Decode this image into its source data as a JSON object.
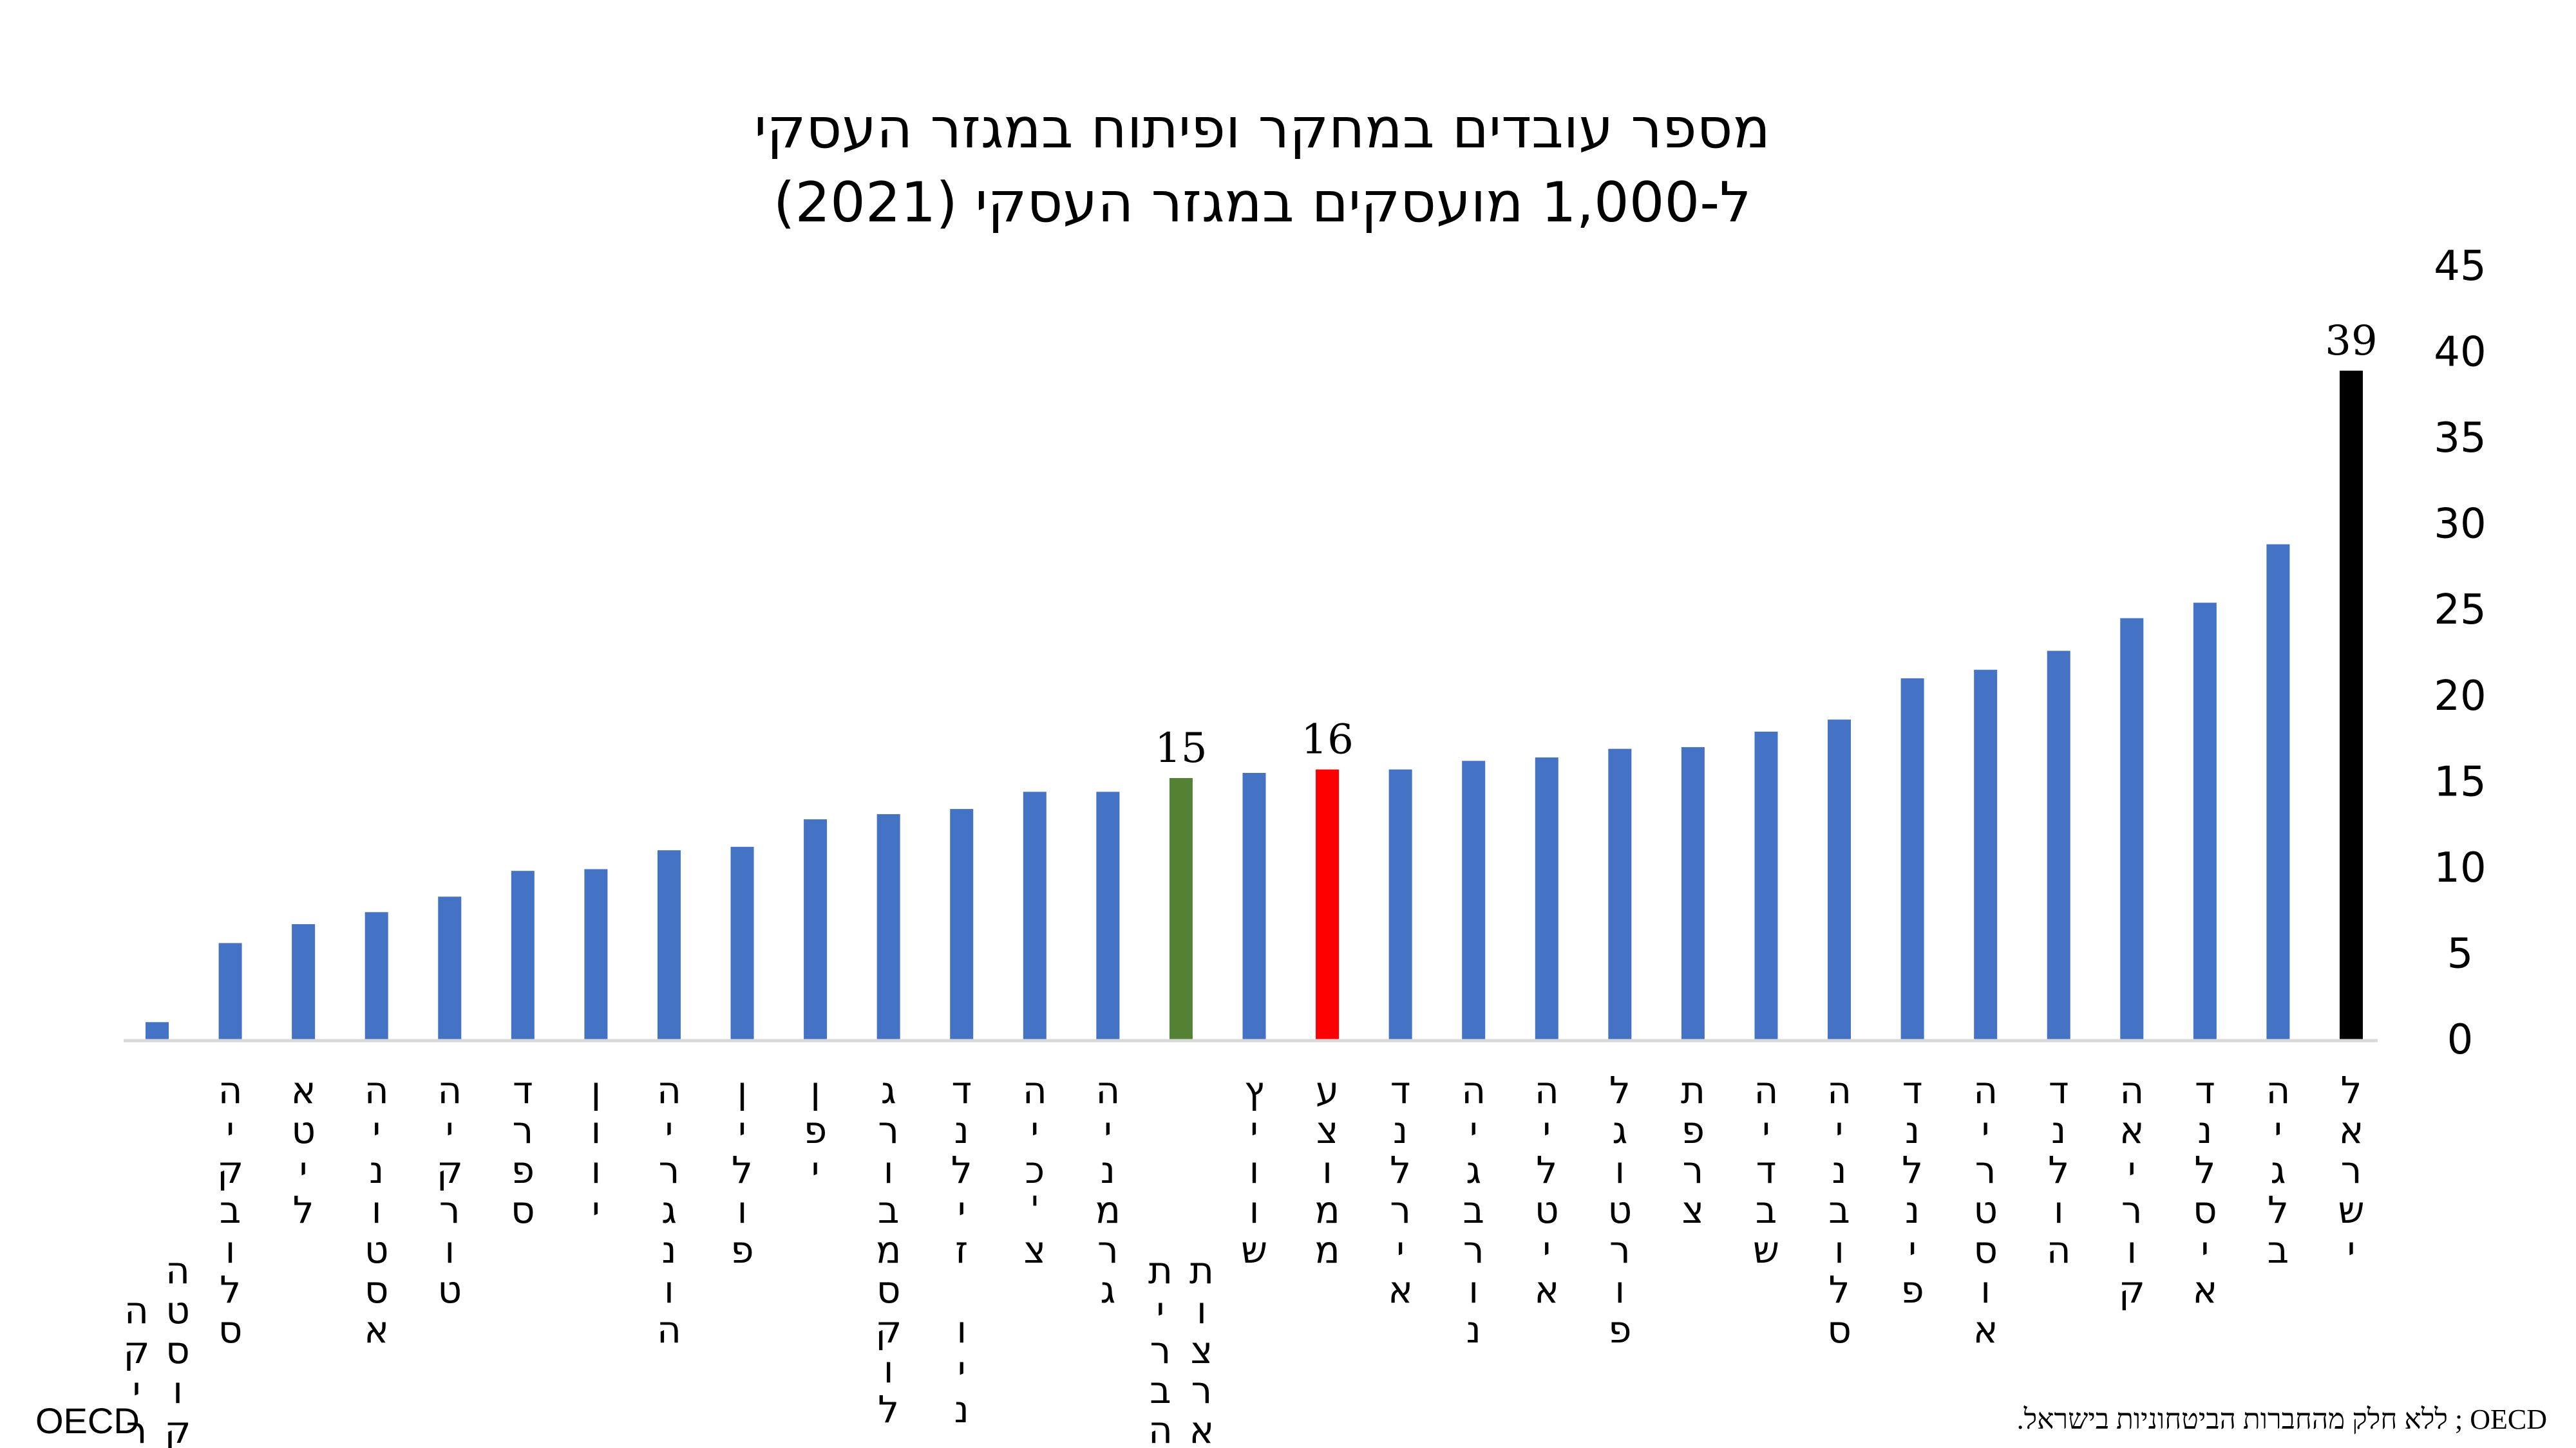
{
  "chart_data": {
    "type": "bar",
    "title": [
      "מספר עובדים במחקר ופיתוח במגזר העסקי",
      "ל-1,000 מועסקים במגזר העסקי (2021)"
    ],
    "xlabel": "",
    "ylabel": "",
    "ylim": [
      0,
      45
    ],
    "yticks": [
      "0",
      "5",
      "10",
      "15",
      "20",
      "25",
      "30",
      "35",
      "40",
      "45"
    ],
    "y_axis_position": "right",
    "grid": false,
    "categories": [
      "קוסטה ריקה",
      "סלובקיה",
      "ליטא",
      "אסטוניה",
      "טורקיה",
      "ספרד",
      "יוון",
      "הונגריה",
      "פולין",
      "יפן",
      "לוקסמבורג",
      "ניו זילנד",
      "צ'כיה",
      "גרמניה",
      "ארצות הברית",
      "שוויץ",
      "ממוצע",
      "אירלנד",
      "נורבגיה",
      "איטליה",
      "פורטוגל",
      "צרפת",
      "שבדיה",
      "סלובניה",
      "פינלנד",
      "אוסטריה",
      "הולנד",
      "קוריאה",
      "איסלנד",
      "בלגיה",
      "ישראל"
    ],
    "values": [
      1.0,
      5.6,
      6.7,
      7.4,
      8.3,
      9.8,
      9.9,
      11.0,
      11.2,
      12.8,
      13.1,
      13.4,
      14.4,
      14.4,
      15.2,
      15.5,
      15.7,
      15.7,
      16.2,
      16.4,
      16.9,
      17.0,
      17.9,
      18.6,
      21.0,
      21.5,
      22.6,
      24.5,
      25.4,
      28.8,
      38.9
    ],
    "colors": {
      "default": "#4472C4",
      "ארצות הברית": "#548235",
      "ממוצע": "#FF0000",
      "ישראל": "#000000"
    },
    "data_labels": {
      "ארצות הברית": "15",
      "ממוצע": "16",
      "ישראל": "39"
    }
  },
  "source_left": "OECD",
  "source_right": "OECD ; ללא חלק מהחברות הביטחוניות בישראל."
}
